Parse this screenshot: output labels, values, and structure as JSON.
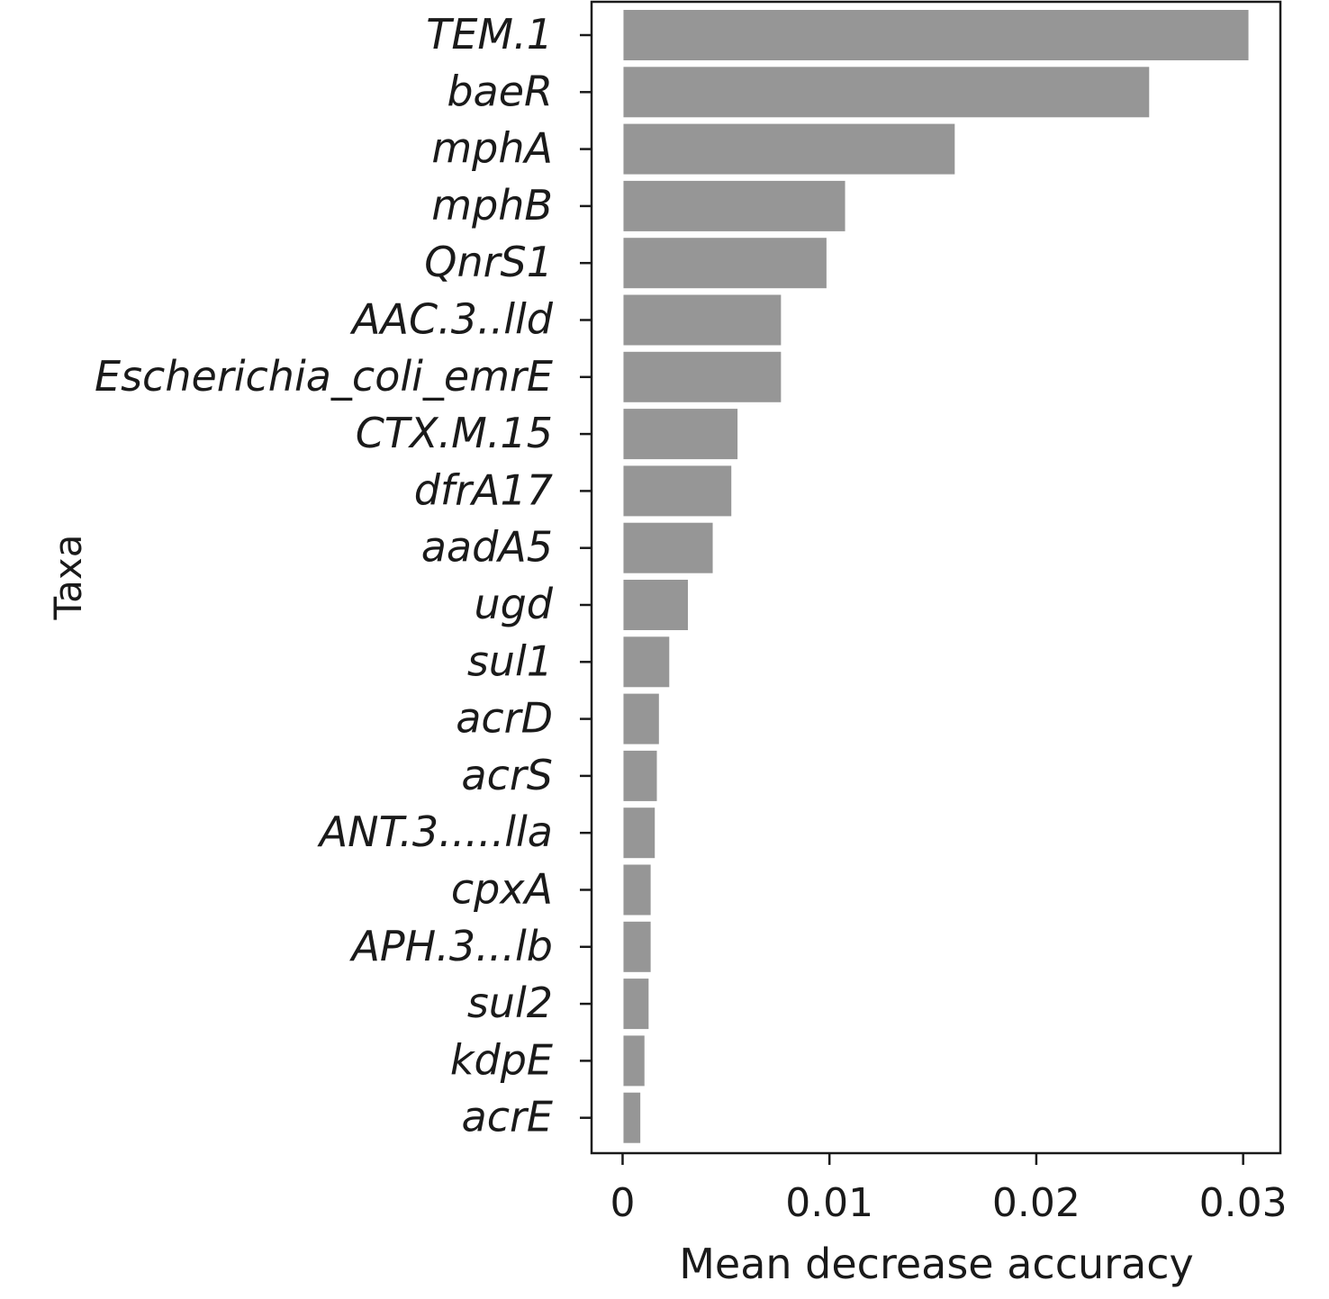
{
  "chart_data": {
    "type": "bar",
    "orientation": "horizontal",
    "categories": [
      "TEM.1",
      "baeR",
      "mphA",
      "mphB",
      "QnrS1",
      "AAC.3..lld",
      "Escherichia_coli_emrE",
      "CTX.M.15",
      "dfrA17",
      "aadA5",
      "ugd",
      "sul1",
      "acrD",
      "acrS",
      "ANT.3.....lla",
      "cpxA",
      "APH.3...lb",
      "sul2",
      "kdpE",
      "acrE"
    ],
    "values": [
      0.0303,
      0.0255,
      0.0161,
      0.0108,
      0.0099,
      0.0077,
      0.0077,
      0.0056,
      0.0053,
      0.0044,
      0.0032,
      0.0023,
      0.0018,
      0.0017,
      0.0016,
      0.0014,
      0.0014,
      0.0013,
      0.0011,
      0.0009
    ],
    "xlabel": "Mean decrease accuracy",
    "ylabel": "Taxa",
    "xlim": [
      -0.0015,
      0.0318
    ],
    "xticks": [
      0,
      0.01,
      0.02,
      0.03
    ],
    "xtick_labels": [
      "0",
      "0.01",
      "0.02",
      "0.03"
    ],
    "grid": false,
    "legend": "none",
    "colors": {
      "bar": "#969696",
      "bar_edge": "#ffffff",
      "frame": "#1a1a1a",
      "text": "#1a1a1a"
    }
  }
}
